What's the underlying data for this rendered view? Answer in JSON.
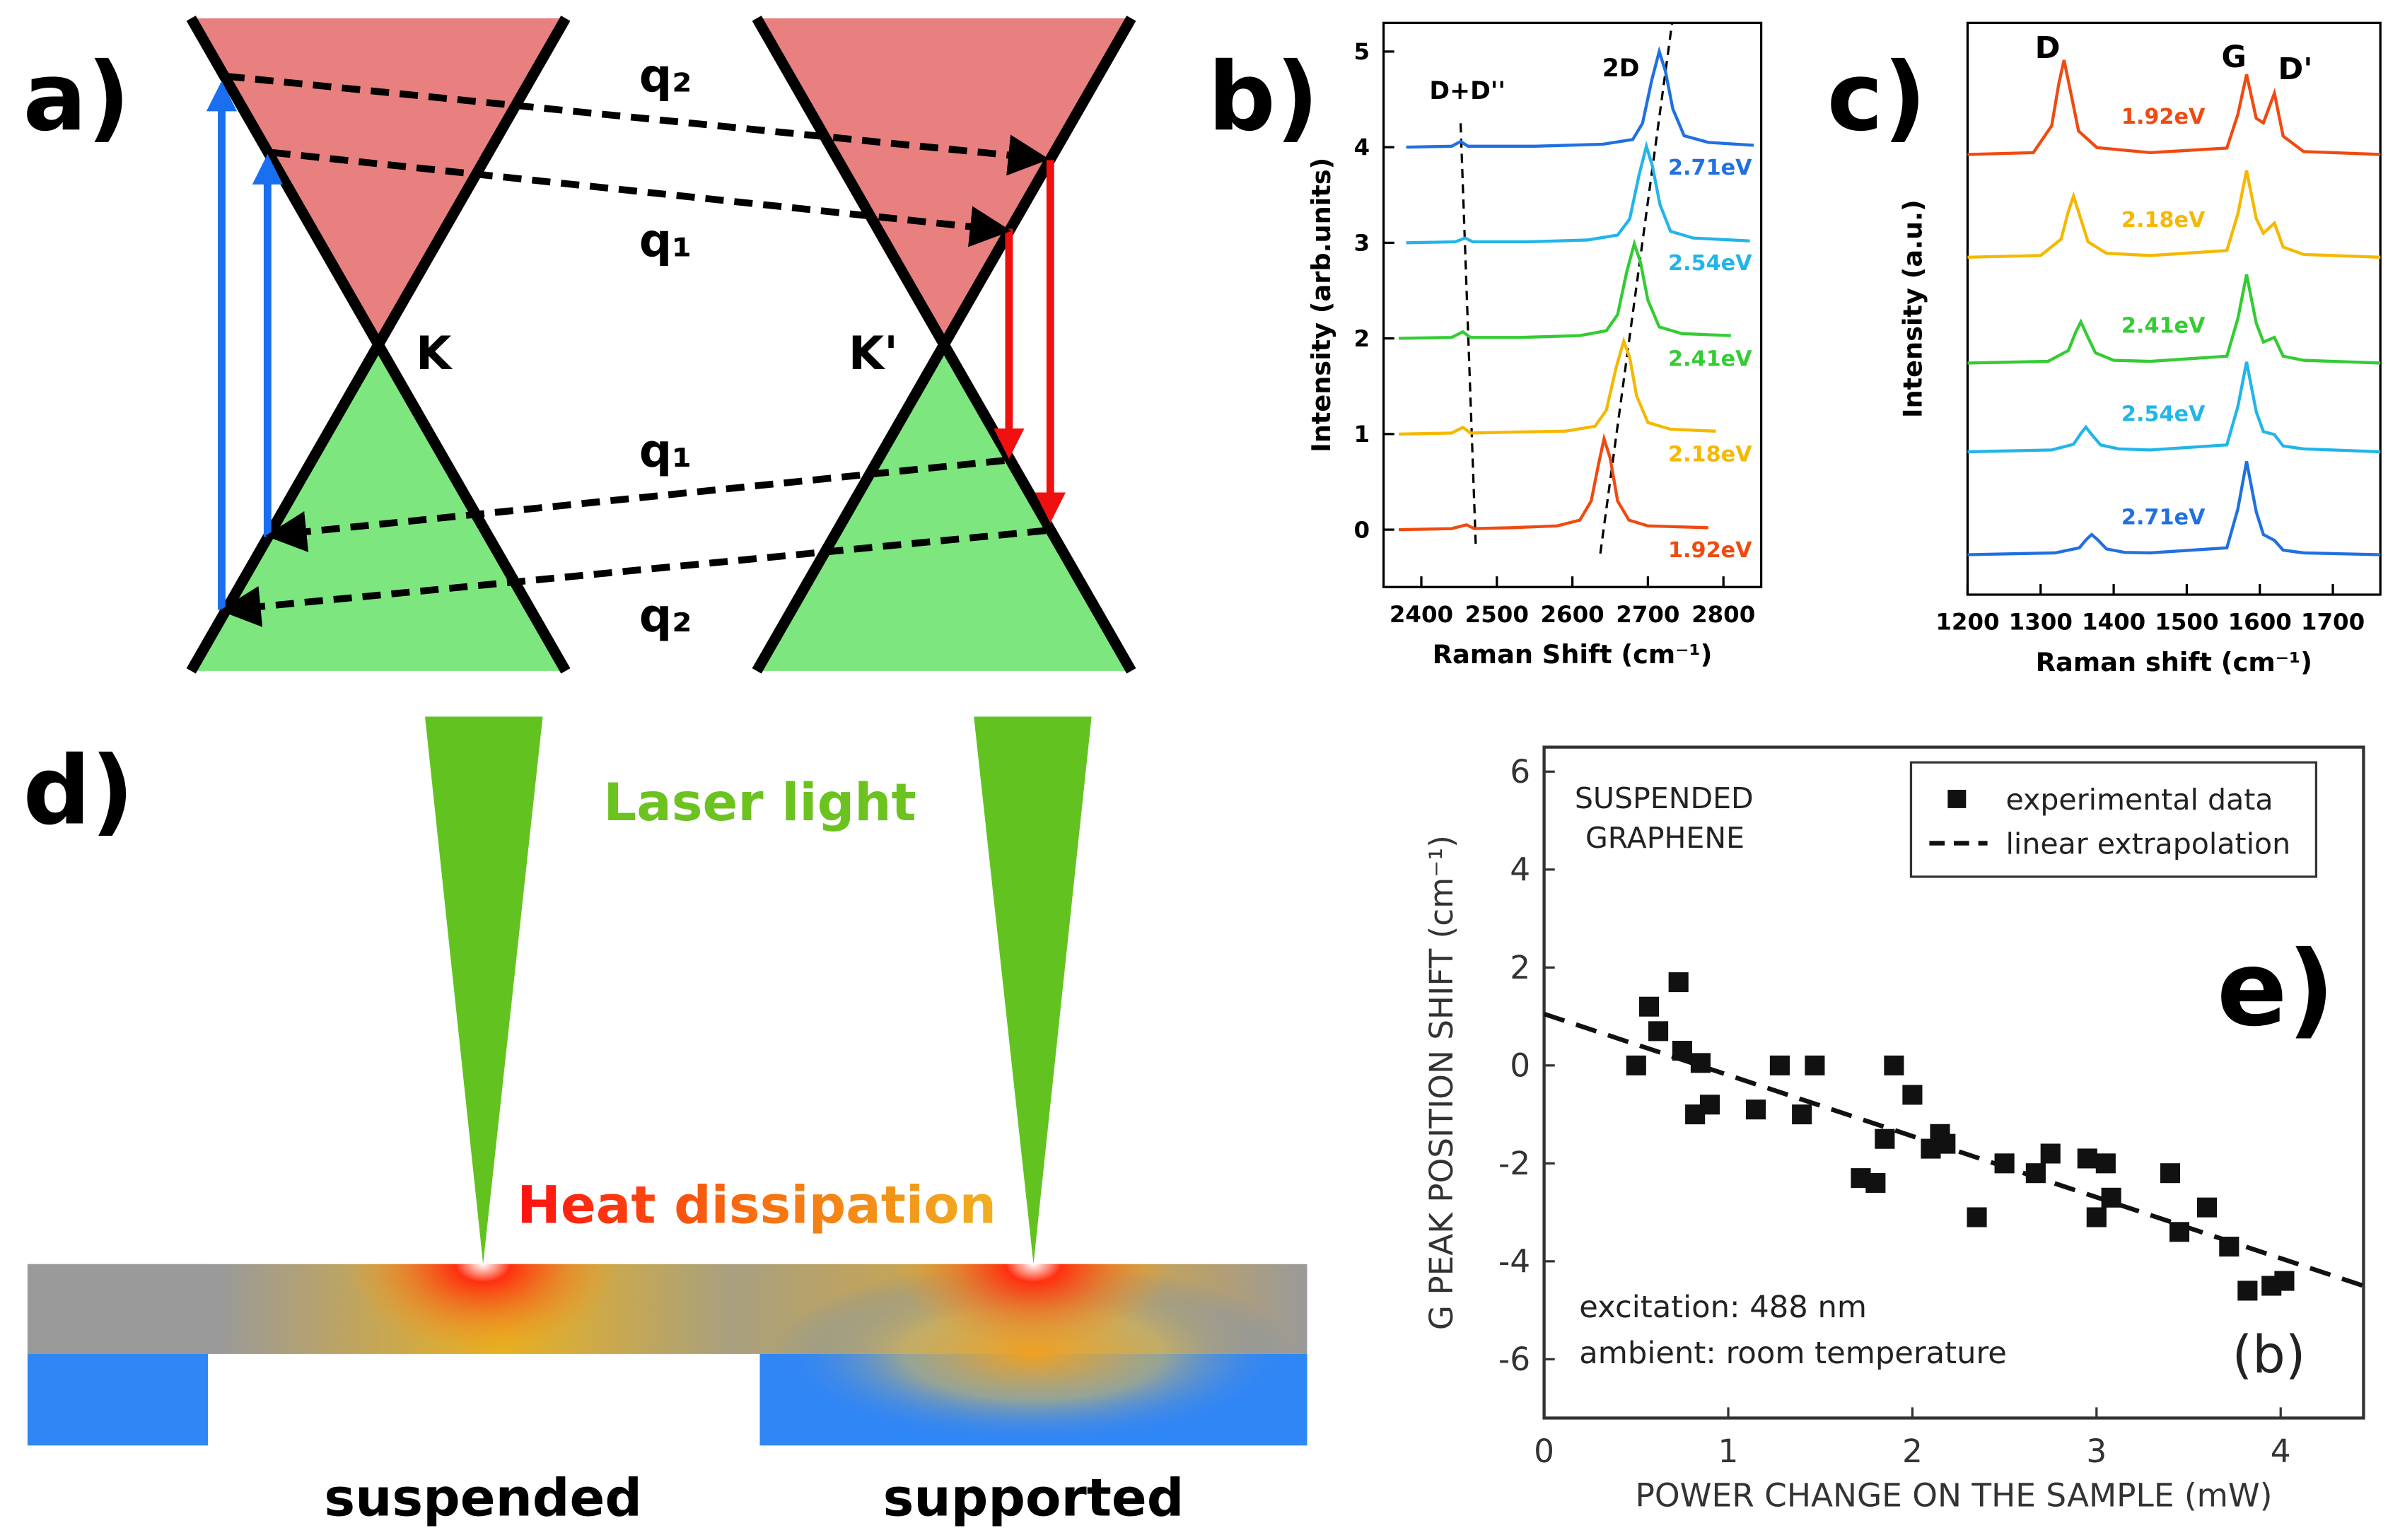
{
  "diagram_a": {
    "letter": "a)",
    "labels": [
      "q₂",
      "q₁",
      "K",
      "K'",
      "q₁",
      "q₂"
    ]
  },
  "chart_data": [
    {
      "type": "line",
      "letter": "b)",
      "xlabel": "Raman Shift (cm⁻¹)",
      "ylabel": "Intensity (arb.units)",
      "xlim": [
        2350,
        2850
      ],
      "ylim": [
        -0.6,
        5.3
      ],
      "xticks": [
        2400,
        2500,
        2600,
        2700,
        2800
      ],
      "yticks": [
        0,
        1,
        2,
        3,
        4,
        5
      ],
      "annotations": [
        "D+D''",
        "2D"
      ],
      "guides": [
        {
          "x": [
            2452,
            2472
          ],
          "y": [
            4.25,
            -0.15
          ]
        },
        {
          "x": [
            2637,
            2732
          ],
          "y": [
            -0.25,
            5.3
          ]
        }
      ],
      "series": [
        {
          "name": "1.92eV",
          "color": "#f04a10",
          "x": [
            2370,
            2440,
            2460,
            2470,
            2520,
            2580,
            2610,
            2625,
            2635,
            2642,
            2650,
            2660,
            2675,
            2700,
            2780
          ],
          "values": [
            0,
            0.01,
            0.05,
            0.01,
            0.02,
            0.04,
            0.1,
            0.3,
            0.7,
            0.95,
            0.75,
            0.3,
            0.1,
            0.04,
            0.02
          ]
        },
        {
          "name": "2.18eV",
          "color": "#f5b800",
          "x": [
            2370,
            2440,
            2455,
            2465,
            2520,
            2590,
            2630,
            2645,
            2658,
            2668,
            2676,
            2685,
            2700,
            2730,
            2790
          ],
          "values": [
            1.0,
            1.01,
            1.07,
            1.01,
            1.02,
            1.03,
            1.08,
            1.25,
            1.7,
            1.97,
            1.8,
            1.4,
            1.12,
            1.05,
            1.03
          ]
        },
        {
          "name": "2.41eV",
          "color": "#33cc33",
          "x": [
            2370,
            2440,
            2455,
            2465,
            2530,
            2610,
            2645,
            2660,
            2672,
            2682,
            2690,
            2700,
            2715,
            2745,
            2810
          ],
          "values": [
            2.0,
            2.01,
            2.07,
            2.01,
            2.01,
            2.03,
            2.08,
            2.25,
            2.7,
            2.99,
            2.8,
            2.4,
            2.12,
            2.05,
            2.03
          ]
        },
        {
          "name": "2.54eV",
          "color": "#22b5e8",
          "x": [
            2380,
            2445,
            2458,
            2468,
            2540,
            2620,
            2660,
            2676,
            2688,
            2698,
            2706,
            2716,
            2730,
            2760,
            2835
          ],
          "values": [
            3.0,
            3.01,
            3.05,
            3.01,
            3.01,
            3.03,
            3.08,
            3.25,
            3.7,
            4.01,
            3.8,
            3.4,
            3.12,
            3.05,
            3.02
          ]
        },
        {
          "name": "2.71eV",
          "color": "#2070e0",
          "x": [
            2380,
            2440,
            2452,
            2462,
            2550,
            2640,
            2680,
            2693,
            2705,
            2715,
            2723,
            2733,
            2748,
            2780,
            2840
          ],
          "values": [
            4.0,
            4.01,
            4.06,
            4.01,
            4.01,
            4.03,
            4.08,
            4.25,
            4.7,
            5.0,
            4.8,
            4.4,
            4.12,
            4.05,
            4.02
          ]
        }
      ]
    },
    {
      "type": "line",
      "letter": "c)",
      "xlabel": "Raman shift (cm⁻¹)",
      "ylabel": "Intensity (a.u.)",
      "xlim": [
        1200,
        1765
      ],
      "ylim": [
        0,
        10
      ],
      "xticks": [
        1200,
        1300,
        1400,
        1500,
        1600,
        1700
      ],
      "annotations": [
        "D",
        "G",
        "D'"
      ],
      "series": [
        {
          "name": "1.92eV",
          "color": "#f04a10",
          "x": [
            1200,
            1290,
            1315,
            1325,
            1332,
            1340,
            1352,
            1377,
            1450,
            1555,
            1570,
            1582,
            1595,
            1605,
            1620,
            1632,
            1660,
            1765
          ],
          "values": [
            7.7,
            7.73,
            8.2,
            8.94,
            9.35,
            8.86,
            8.11,
            7.82,
            7.73,
            7.81,
            8.4,
            9.1,
            8.33,
            8.25,
            8.77,
            8.02,
            7.75,
            7.7
          ]
        },
        {
          "name": "2.18eV",
          "color": "#f5b800",
          "x": [
            1200,
            1300,
            1328,
            1338,
            1345,
            1353,
            1365,
            1390,
            1450,
            1555,
            1570,
            1582,
            1595,
            1605,
            1620,
            1632,
            1660,
            1765
          ],
          "values": [
            5.9,
            5.93,
            6.22,
            6.7,
            6.97,
            6.65,
            6.17,
            5.97,
            5.93,
            6.02,
            6.66,
            7.42,
            6.58,
            6.32,
            6.5,
            6.08,
            5.95,
            5.9
          ]
        },
        {
          "name": "2.41eV",
          "color": "#33cc33",
          "x": [
            1200,
            1310,
            1338,
            1348,
            1355,
            1363,
            1375,
            1400,
            1450,
            1555,
            1570,
            1582,
            1595,
            1605,
            1620,
            1632,
            1660,
            1765
          ],
          "values": [
            4.05,
            4.08,
            4.27,
            4.59,
            4.77,
            4.55,
            4.23,
            4.1,
            4.08,
            4.17,
            4.83,
            5.6,
            4.75,
            4.42,
            4.5,
            4.17,
            4.1,
            4.05
          ]
        },
        {
          "name": "2.54eV",
          "color": "#22b5e8",
          "x": [
            1200,
            1315,
            1345,
            1355,
            1362,
            1370,
            1382,
            1407,
            1450,
            1555,
            1570,
            1582,
            1595,
            1605,
            1620,
            1632,
            1660,
            1765
          ],
          "values": [
            2.5,
            2.53,
            2.63,
            2.82,
            2.93,
            2.8,
            2.62,
            2.55,
            2.53,
            2.62,
            3.29,
            4.07,
            3.2,
            2.85,
            2.8,
            2.6,
            2.55,
            2.5
          ]
        },
        {
          "name": "2.71eV",
          "color": "#2070e0",
          "x": [
            1200,
            1320,
            1353,
            1363,
            1370,
            1378,
            1390,
            1415,
            1450,
            1555,
            1570,
            1582,
            1595,
            1605,
            1620,
            1632,
            1660,
            1765
          ],
          "values": [
            0.7,
            0.73,
            0.82,
            0.97,
            1.05,
            0.96,
            0.8,
            0.74,
            0.73,
            0.82,
            1.5,
            2.33,
            1.45,
            1.05,
            0.95,
            0.78,
            0.73,
            0.7
          ]
        }
      ]
    },
    {
      "type": "scatter",
      "letter": "e)",
      "xlabel": "POWER CHANGE ON THE SAMPLE  (mW)",
      "ylabel": "G PEAK POSITION SHIFT (cm⁻¹)",
      "xlim": [
        0,
        4.45
      ],
      "ylim": [
        -7.2,
        6.5
      ],
      "xticks": [
        0,
        1,
        2,
        3,
        4
      ],
      "yticks": [
        -6,
        -4,
        -2,
        0,
        2,
        4,
        6
      ],
      "annotations": [
        "SUSPENDED",
        "GRAPHENE",
        "excitation: 488 nm",
        "ambient: room temperature",
        "(b)"
      ],
      "series": [
        {
          "name": "experimental data",
          "color": "#111111",
          "marker": "square",
          "x": [
            0.5,
            0.57,
            0.62,
            0.73,
            0.75,
            0.85,
            0.82,
            0.9,
            1.15,
            1.28,
            1.4,
            1.47,
            1.9,
            1.85,
            2.0,
            2.1,
            2.15,
            2.18,
            1.72,
            1.8,
            2.35,
            2.5,
            2.67,
            2.75,
            2.95,
            3.0,
            3.05,
            3.08,
            3.4,
            3.45,
            3.6,
            3.72,
            3.82,
            3.95,
            4.02
          ],
          "values": [
            0,
            1.2,
            0.7,
            1.7,
            0.3,
            0.05,
            -1,
            -0.8,
            -0.9,
            0,
            -1,
            0,
            0,
            -1.5,
            -0.6,
            -1.7,
            -1.4,
            -1.6,
            -2.3,
            -2.4,
            -3.1,
            -2,
            -2.2,
            -1.8,
            -1.9,
            -3.1,
            -2,
            -2.7,
            -2.2,
            -3.4,
            -2.9,
            -3.7,
            -4.6,
            -4.5,
            -4.4
          ]
        },
        {
          "name": "linear extrapolation",
          "color": "#111111",
          "linestyle": "dashed",
          "x": [
            0,
            4.45
          ],
          "values": [
            1.05,
            -4.5
          ]
        }
      ]
    }
  ],
  "diagram_d": {
    "letter": "d)",
    "laser": "Laser light",
    "heat": "Heat dissipation",
    "left": "suspended",
    "right": "supported"
  }
}
